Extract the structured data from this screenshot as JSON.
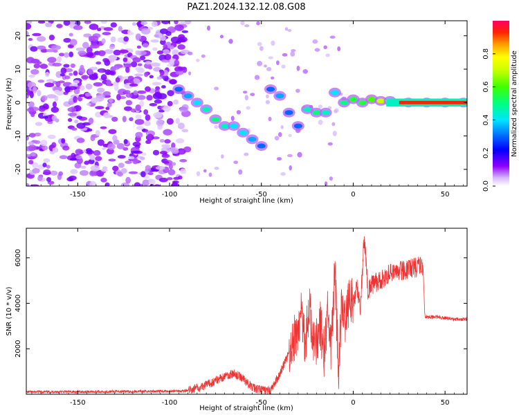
{
  "figure_title": "PAZ1.2024.132.12.08.G08",
  "chart_data": [
    {
      "type": "heatmap",
      "xlabel": "Height of straight line (km)",
      "ylabel": "Frequency (Hz)",
      "xlim": [
        -178,
        62
      ],
      "ylim": [
        -25,
        24.5
      ],
      "xticks": [
        -150,
        -100,
        -50,
        0,
        50
      ],
      "yticks": [
        -20,
        -10,
        0,
        10,
        20
      ],
      "colorbar": {
        "label": "Normalized spectral amplitude",
        "range": [
          0,
          1
        ],
        "ticks": [
          "0.0",
          "0.2",
          "0.4",
          "0.6",
          "0.8"
        ],
        "colormap": "rainbow"
      },
      "ridge": [
        {
          "x": -95,
          "y": 4,
          "amp": 0.3
        },
        {
          "x": -90,
          "y": 2,
          "amp": 0.35
        },
        {
          "x": -85,
          "y": 0,
          "amp": 0.4
        },
        {
          "x": -80,
          "y": -2,
          "amp": 0.45
        },
        {
          "x": -75,
          "y": -5,
          "amp": 0.5
        },
        {
          "x": -70,
          "y": -7,
          "amp": 0.45
        },
        {
          "x": -65,
          "y": -7,
          "amp": 0.4
        },
        {
          "x": -60,
          "y": -9,
          "amp": 0.4
        },
        {
          "x": -55,
          "y": -11,
          "amp": 0.35
        },
        {
          "x": -50,
          "y": -13,
          "amp": 0.3
        },
        {
          "x": -45,
          "y": 4,
          "amp": 0.3
        },
        {
          "x": -40,
          "y": 2,
          "amp": 0.35
        },
        {
          "x": -35,
          "y": -3,
          "amp": 0.3
        },
        {
          "x": -30,
          "y": -7,
          "amp": 0.3
        },
        {
          "x": -25,
          "y": -2,
          "amp": 0.45
        },
        {
          "x": -20,
          "y": -3,
          "amp": 0.5
        },
        {
          "x": -15,
          "y": -3,
          "amp": 0.45
        },
        {
          "x": -10,
          "y": 3,
          "amp": 0.4
        },
        {
          "x": -5,
          "y": 0,
          "amp": 0.5
        },
        {
          "x": 0,
          "y": 1,
          "amp": 0.55
        },
        {
          "x": 5,
          "y": 0,
          "amp": 0.55
        },
        {
          "x": 10,
          "y": 1,
          "amp": 0.6
        },
        {
          "x": 15,
          "y": 0.5,
          "amp": 0.7
        },
        {
          "x": 20,
          "y": 0.5,
          "amp": 0.75
        },
        {
          "x": 30,
          "y": 0,
          "amp": 0.9
        },
        {
          "x": 40,
          "y": 0,
          "amp": 0.95
        },
        {
          "x": 50,
          "y": 0,
          "amp": 0.9
        },
        {
          "x": 60,
          "y": 0,
          "amp": 0.85
        }
      ]
    },
    {
      "type": "line",
      "xlabel": "Height of straight line (km)",
      "ylabel": "SNR (10 * v/v)",
      "xlim": [
        -178,
        62
      ],
      "ylim": [
        0,
        7300
      ],
      "xticks": [
        -150,
        -100,
        -50,
        0,
        50
      ],
      "yticks": [
        2000,
        4000,
        6000
      ],
      "color": "#ee3333",
      "x": [
        -178,
        -150,
        -120,
        -90,
        -80,
        -70,
        -65,
        -60,
        -55,
        -50,
        -45,
        -40,
        -35,
        -30,
        -28,
        -26,
        -24,
        -22,
        -20,
        -18,
        -16,
        -14,
        -12,
        -10,
        -8,
        -6,
        -4,
        -2,
        0,
        2,
        4,
        6,
        8,
        10,
        15,
        20,
        25,
        30,
        35,
        38,
        39,
        40,
        45,
        50,
        55,
        62
      ],
      "y": [
        100,
        110,
        120,
        150,
        400,
        800,
        900,
        700,
        300,
        200,
        150,
        900,
        1800,
        2800,
        3600,
        2200,
        3900,
        2600,
        2300,
        3100,
        1700,
        3500,
        1900,
        5300,
        1200,
        4100,
        3200,
        4200,
        4000,
        4700,
        3800,
        7000,
        4600,
        4800,
        5000,
        5300,
        5400,
        5500,
        5600,
        5650,
        3450,
        3400,
        3400,
        3350,
        3300,
        3300
      ]
    }
  ]
}
